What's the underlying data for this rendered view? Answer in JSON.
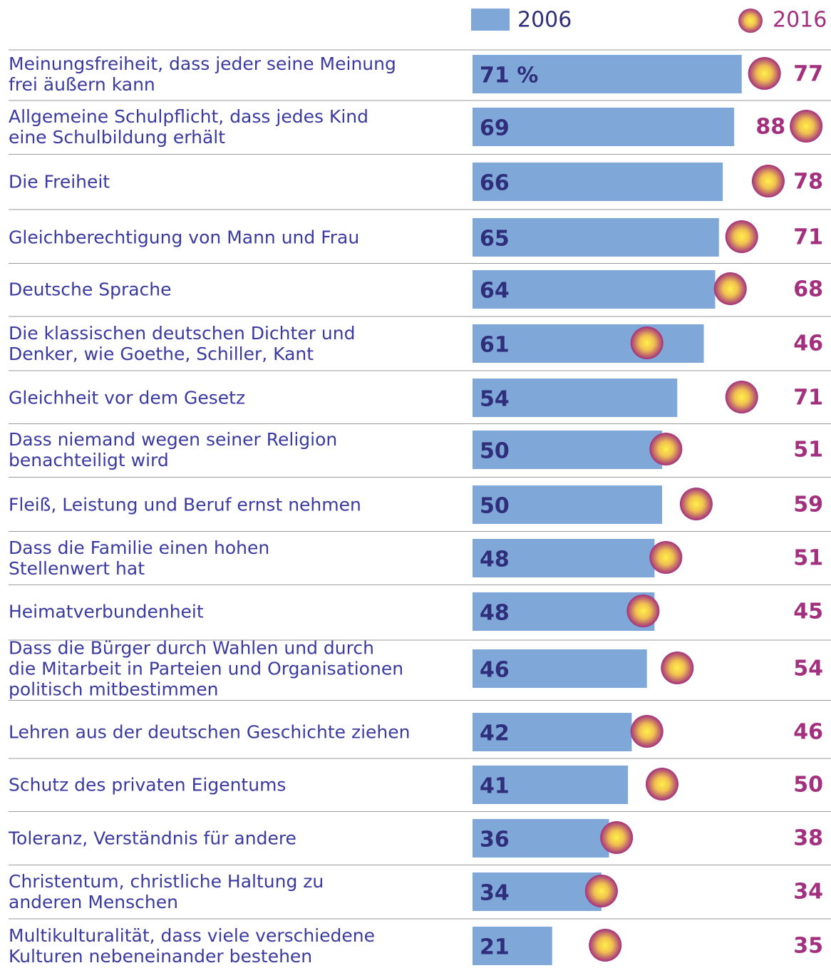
{
  "chart_data": {
    "type": "bar_dot",
    "categories": [
      "Meinungsfreiheit, dass jeder seine Meinung\nfrei äußern kann",
      "Allgemeine Schulpflicht, dass jedes Kind\neine Schulbildung erhält",
      "Die Freiheit",
      "Gleichberechtigung von Mann und Frau",
      "Deutsche Sprache",
      "Die klassischen deutschen Dichter und\nDenker, wie Goethe, Schiller, Kant",
      "Gleichheit vor dem Gesetz",
      "Dass niemand wegen seiner Religion\nbenachteiligt wird",
      "Fleiß, Leistung und Beruf ernst nehmen",
      "Dass die Familie einen hohen\nStellenwert hat",
      "Heimatverbundenheit",
      "Dass die Bürger durch Wahlen und durch\ndie Mitarbeit in Parteien und Organisationen\npolitisch mitbestimmen",
      "Lehren aus der deutschen Geschichte ziehen",
      "Schutz des privaten Eigentums",
      "Toleranz, Verständnis für andere",
      "Christentum, christliche Haltung zu\nanderen Menschen",
      "Multikulturalität, dass viele verschiedene\nKulturen nebeneinander bestehen"
    ],
    "series": [
      {
        "name": "2006",
        "color": "#7fa8d9",
        "values": [
          71,
          69,
          66,
          65,
          64,
          61,
          54,
          50,
          50,
          48,
          48,
          46,
          42,
          41,
          36,
          34,
          21
        ],
        "value_labels": [
          "71 %",
          "69",
          "66",
          "65",
          "64",
          "61",
          "54",
          "50",
          "50",
          "48",
          "48",
          "46",
          "42",
          "41",
          "36",
          "34",
          "21"
        ]
      },
      {
        "name": "2016",
        "color": "#a3307e",
        "values": [
          77,
          88,
          78,
          71,
          68,
          46,
          71,
          51,
          59,
          51,
          45,
          54,
          46,
          50,
          38,
          34,
          35
        ]
      }
    ]
  }
}
